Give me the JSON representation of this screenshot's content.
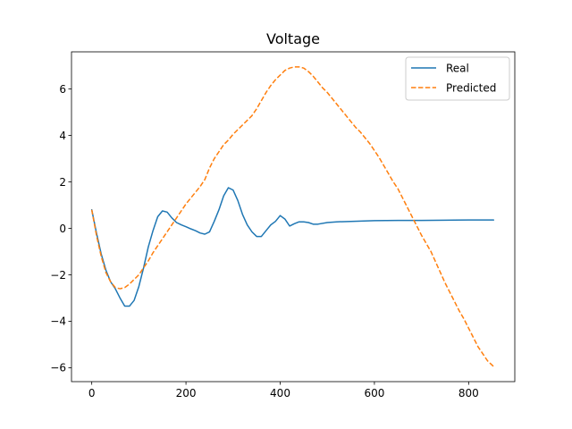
{
  "chart_data": {
    "type": "line",
    "title": "Voltage",
    "xlabel": "",
    "ylabel": "",
    "xlim": [
      -43,
      898
    ],
    "ylim": [
      -6.6,
      7.6
    ],
    "x_ticks": [
      0,
      200,
      400,
      600,
      800
    ],
    "y_ticks": [
      -6,
      -4,
      -2,
      0,
      2,
      4,
      6
    ],
    "x_tick_labels": [
      "0",
      "200",
      "400",
      "600",
      "800"
    ],
    "y_tick_labels": [
      "−6",
      "−4",
      "−2",
      "0",
      "2",
      "4",
      "6"
    ],
    "grid": false,
    "legend": {
      "position": "top-right"
    },
    "series": [
      {
        "name": "Real",
        "color": "#1f77b4",
        "style": "solid",
        "points": [
          [
            0,
            0.8
          ],
          [
            10,
            -0.2
          ],
          [
            20,
            -1.1
          ],
          [
            30,
            -1.8
          ],
          [
            40,
            -2.3
          ],
          [
            50,
            -2.6
          ],
          [
            60,
            -3.0
          ],
          [
            70,
            -3.35
          ],
          [
            80,
            -3.35
          ],
          [
            90,
            -3.1
          ],
          [
            100,
            -2.5
          ],
          [
            110,
            -1.7
          ],
          [
            120,
            -0.8
          ],
          [
            130,
            -0.1
          ],
          [
            140,
            0.5
          ],
          [
            150,
            0.75
          ],
          [
            160,
            0.7
          ],
          [
            170,
            0.45
          ],
          [
            180,
            0.25
          ],
          [
            190,
            0.15
          ],
          [
            200,
            0.07
          ],
          [
            210,
            -0.02
          ],
          [
            220,
            -0.1
          ],
          [
            230,
            -0.2
          ],
          [
            240,
            -0.25
          ],
          [
            250,
            -0.15
          ],
          [
            260,
            0.3
          ],
          [
            270,
            0.8
          ],
          [
            280,
            1.4
          ],
          [
            290,
            1.75
          ],
          [
            300,
            1.65
          ],
          [
            310,
            1.2
          ],
          [
            320,
            0.6
          ],
          [
            330,
            0.15
          ],
          [
            340,
            -0.15
          ],
          [
            350,
            -0.35
          ],
          [
            360,
            -0.35
          ],
          [
            370,
            -0.1
          ],
          [
            380,
            0.15
          ],
          [
            390,
            0.3
          ],
          [
            400,
            0.55
          ],
          [
            410,
            0.4
          ],
          [
            420,
            0.1
          ],
          [
            430,
            0.2
          ],
          [
            440,
            0.28
          ],
          [
            450,
            0.28
          ],
          [
            460,
            0.25
          ],
          [
            470,
            0.18
          ],
          [
            480,
            0.18
          ],
          [
            500,
            0.25
          ],
          [
            520,
            0.28
          ],
          [
            550,
            0.3
          ],
          [
            600,
            0.33
          ],
          [
            650,
            0.34
          ],
          [
            700,
            0.34
          ],
          [
            750,
            0.35
          ],
          [
            800,
            0.36
          ],
          [
            853,
            0.36
          ]
        ]
      },
      {
        "name": "Predicted",
        "color": "#ff7f0e",
        "style": "dashed",
        "points": [
          [
            0,
            0.8
          ],
          [
            10,
            -0.3
          ],
          [
            20,
            -1.2
          ],
          [
            30,
            -1.9
          ],
          [
            40,
            -2.3
          ],
          [
            50,
            -2.55
          ],
          [
            60,
            -2.6
          ],
          [
            70,
            -2.55
          ],
          [
            80,
            -2.4
          ],
          [
            90,
            -2.2
          ],
          [
            100,
            -2.0
          ],
          [
            110,
            -1.7
          ],
          [
            120,
            -1.4
          ],
          [
            130,
            -1.05
          ],
          [
            140,
            -0.75
          ],
          [
            150,
            -0.45
          ],
          [
            160,
            -0.15
          ],
          [
            170,
            0.15
          ],
          [
            180,
            0.45
          ],
          [
            190,
            0.75
          ],
          [
            200,
            1.05
          ],
          [
            210,
            1.3
          ],
          [
            220,
            1.55
          ],
          [
            230,
            1.8
          ],
          [
            240,
            2.1
          ],
          [
            250,
            2.6
          ],
          [
            260,
            3.0
          ],
          [
            270,
            3.3
          ],
          [
            280,
            3.6
          ],
          [
            290,
            3.8
          ],
          [
            300,
            4.05
          ],
          [
            310,
            4.25
          ],
          [
            320,
            4.45
          ],
          [
            330,
            4.65
          ],
          [
            340,
            4.85
          ],
          [
            350,
            5.15
          ],
          [
            360,
            5.5
          ],
          [
            370,
            5.85
          ],
          [
            380,
            6.15
          ],
          [
            390,
            6.4
          ],
          [
            400,
            6.6
          ],
          [
            410,
            6.8
          ],
          [
            420,
            6.9
          ],
          [
            430,
            6.95
          ],
          [
            440,
            6.95
          ],
          [
            450,
            6.9
          ],
          [
            460,
            6.75
          ],
          [
            470,
            6.55
          ],
          [
            480,
            6.3
          ],
          [
            490,
            6.05
          ],
          [
            500,
            5.85
          ],
          [
            510,
            5.6
          ],
          [
            520,
            5.35
          ],
          [
            530,
            5.1
          ],
          [
            540,
            4.85
          ],
          [
            550,
            4.6
          ],
          [
            560,
            4.35
          ],
          [
            570,
            4.15
          ],
          [
            580,
            3.9
          ],
          [
            590,
            3.65
          ],
          [
            600,
            3.35
          ],
          [
            610,
            3.05
          ],
          [
            620,
            2.7
          ],
          [
            630,
            2.35
          ],
          [
            640,
            2.0
          ],
          [
            650,
            1.7
          ],
          [
            660,
            1.3
          ],
          [
            670,
            0.9
          ],
          [
            680,
            0.5
          ],
          [
            690,
            0.1
          ],
          [
            700,
            -0.3
          ],
          [
            710,
            -0.65
          ],
          [
            720,
            -1.0
          ],
          [
            730,
            -1.45
          ],
          [
            740,
            -1.9
          ],
          [
            750,
            -2.35
          ],
          [
            760,
            -2.75
          ],
          [
            770,
            -3.15
          ],
          [
            780,
            -3.55
          ],
          [
            790,
            -3.9
          ],
          [
            800,
            -4.3
          ],
          [
            810,
            -4.7
          ],
          [
            820,
            -5.1
          ],
          [
            830,
            -5.4
          ],
          [
            840,
            -5.7
          ],
          [
            853,
            -5.95
          ]
        ]
      }
    ]
  }
}
